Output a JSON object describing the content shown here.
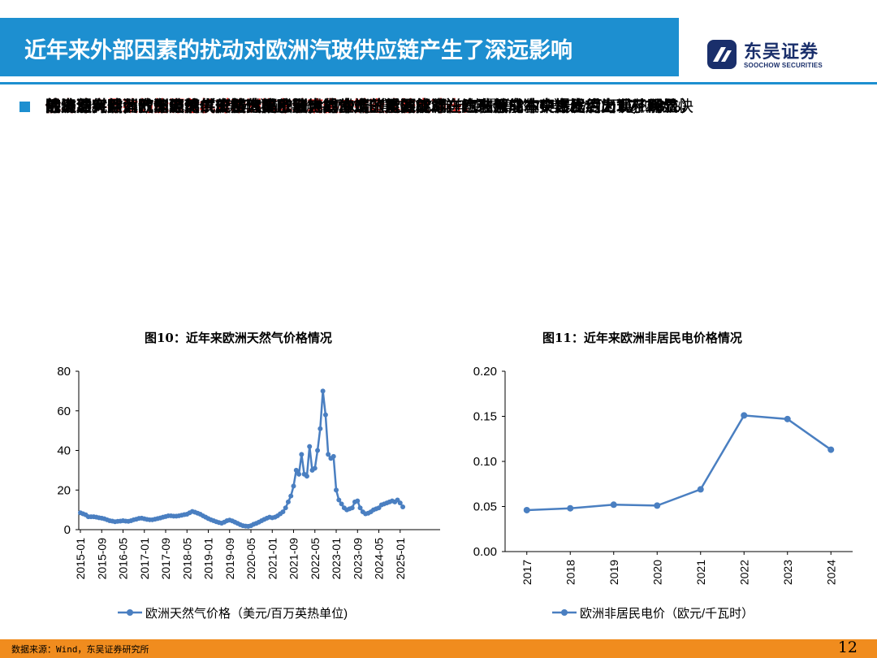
{
  "header": {
    "title": "近年来外部因素的扰动对欧洲汽玻供应链产生了深远影响",
    "logo_cn": "东吴证券",
    "logo_en": "SOOCHOW SECURITIES",
    "accent_color": "#1d8fd0",
    "logo_color": "#1a2f6b"
  },
  "bullets": {
    "heading": "俄乌冲突导致的能源危机对欧洲汽车玻璃供应链造成较大冲击。",
    "p1_line1": "俄乌冲突后，欧洲天然气价格大幅上涨，成本端（能源成本在汽玻总成本中占比约为17-18%）",
    "p1_line2_bold": "的波动对欧洲汽车玻璃供应链造成了较大的冲击。",
    "p1_line2_rest": "虽然新的进口来源能在一定程度上填补俄气",
    "p1_line3": "的缺口，但替代来源的成本和供应稳定性均造成了新的挑战。欧洲天然气价格从2021Q1开始快",
    "p1_line4": "速上涨，从此前的平均4-5美元/百万英热单位上涨至2022年年中最高约70美元/百万英热单位，",
    "p1_line5": "后续虽有回落，但相比2021年之前的价格仍处于高位。",
    "p2_line1": "除天然气外，欧洲电价（天然气是欧洲电力生产的重要能源）也在俄乌冲突爆发后出现了明显",
    "p2_line2": "的上涨。"
  },
  "figures": {
    "fig10_title": "图10：近年来欧洲天然气价格情况",
    "fig11_title": "图11：近年来欧洲非居民电价格情况"
  },
  "chart_data": [
    {
      "type": "line",
      "title": "图10：近年来欧洲天然气价格情况",
      "series_name": "欧洲天然气价格（美元/百万英热单位)",
      "color": "#4a7fc1",
      "ylim": [
        0,
        80
      ],
      "yticks": [
        "0",
        "20",
        "40",
        "60",
        "80"
      ],
      "xticks": [
        "2015-01",
        "2015-09",
        "2016-05",
        "2017-01",
        "2017-09",
        "2018-05",
        "2019-01",
        "2019-09",
        "2020-05",
        "2021-01",
        "2021-09",
        "2022-05",
        "2023-01",
        "2023-09",
        "2024-05",
        "2025-01"
      ],
      "x_start": "2015-01",
      "values": [
        8.5,
        8,
        7.5,
        6.5,
        6.5,
        6.5,
        6.3,
        6,
        5.8,
        5.5,
        5,
        4.5,
        4.3,
        4,
        4.2,
        4.3,
        4.5,
        4.3,
        4.2,
        4.5,
        5,
        5.3,
        5.7,
        5.8,
        5.5,
        5.2,
        5,
        5,
        5.3,
        5.6,
        5.9,
        6.3,
        6.6,
        7,
        7,
        6.8,
        6.8,
        7,
        7.3,
        7.6,
        7.8,
        8.5,
        9.2,
        8.8,
        8.3,
        7.8,
        7,
        6.3,
        5.6,
        5,
        4.5,
        4,
        3.6,
        3.3,
        3.8,
        4.5,
        4.8,
        4.4,
        3.8,
        3.2,
        2.5,
        2,
        1.8,
        1.7,
        2,
        2.7,
        3.2,
        3.8,
        4.5,
        5.2,
        5.8,
        6.3,
        6,
        6.3,
        7,
        8,
        9,
        11,
        14,
        17,
        22,
        30,
        28,
        38,
        28,
        27,
        42,
        30,
        31,
        40,
        51,
        70,
        58,
        38,
        36,
        37,
        20,
        15,
        13,
        11,
        10,
        10.5,
        11,
        14,
        14.5,
        11,
        9,
        8,
        8.3,
        9,
        10,
        10.5,
        11,
        12.5,
        13,
        13.5,
        14,
        14.5,
        14,
        15,
        13.5,
        11.5
      ]
    },
    {
      "type": "line",
      "title": "图11：近年来欧洲非居民电价格情况",
      "series_name": "欧洲非居民电价（欧元/千瓦时）",
      "color": "#4a7fc1",
      "ylim": [
        0,
        0.2
      ],
      "yticks": [
        "0.00",
        "0.05",
        "0.10",
        "0.15",
        "0.20"
      ],
      "categories": [
        "2017",
        "2018",
        "2019",
        "2020",
        "2021",
        "2022",
        "2023",
        "2024"
      ],
      "values": [
        0.046,
        0.048,
        0.052,
        0.051,
        0.069,
        0.151,
        0.147,
        0.113
      ]
    }
  ],
  "footer": {
    "source": "数据来源：Wind，东吴证券研究所",
    "page": "12",
    "bar_color": "#f08c1e"
  }
}
